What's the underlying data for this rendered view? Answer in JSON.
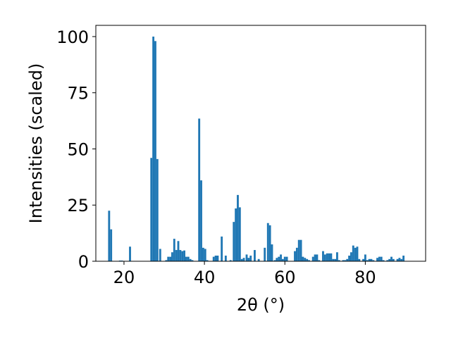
{
  "chart_data": {
    "type": "bar",
    "title": "",
    "xlabel": "2θ (°)",
    "ylabel": "Intensities (scaled)",
    "xlim": [
      13,
      95
    ],
    "ylim": [
      0,
      105
    ],
    "xticks": [
      20,
      40,
      60,
      80
    ],
    "yticks": [
      0,
      25,
      50,
      75,
      100
    ],
    "bar_width": 0.5,
    "bar_color": "#1f77b4",
    "grid": false,
    "bars": [
      {
        "x": 16.3,
        "y": 22.5
      },
      {
        "x": 16.8,
        "y": 14.2
      },
      {
        "x": 19.0,
        "y": 0.3
      },
      {
        "x": 19.5,
        "y": 0.3
      },
      {
        "x": 21.5,
        "y": 6.5
      },
      {
        "x": 26.8,
        "y": 46.0
      },
      {
        "x": 27.3,
        "y": 100.0
      },
      {
        "x": 27.8,
        "y": 98.0
      },
      {
        "x": 28.3,
        "y": 45.5
      },
      {
        "x": 29.0,
        "y": 5.5
      },
      {
        "x": 30.5,
        "y": 0.5
      },
      {
        "x": 31.0,
        "y": 2.0
      },
      {
        "x": 31.5,
        "y": 2.0
      },
      {
        "x": 32.0,
        "y": 4.0
      },
      {
        "x": 32.5,
        "y": 10.0
      },
      {
        "x": 33.0,
        "y": 5.0
      },
      {
        "x": 33.5,
        "y": 9.0
      },
      {
        "x": 34.0,
        "y": 5.0
      },
      {
        "x": 34.5,
        "y": 4.5
      },
      {
        "x": 35.0,
        "y": 4.8
      },
      {
        "x": 35.5,
        "y": 2.0
      },
      {
        "x": 36.0,
        "y": 2.0
      },
      {
        "x": 36.5,
        "y": 1.0
      },
      {
        "x": 37.0,
        "y": 0.5
      },
      {
        "x": 38.7,
        "y": 63.5
      },
      {
        "x": 39.2,
        "y": 36.0
      },
      {
        "x": 39.7,
        "y": 6.0
      },
      {
        "x": 40.2,
        "y": 5.5
      },
      {
        "x": 40.7,
        "y": 0.5
      },
      {
        "x": 42.3,
        "y": 2.0
      },
      {
        "x": 42.8,
        "y": 2.5
      },
      {
        "x": 43.3,
        "y": 2.5
      },
      {
        "x": 44.3,
        "y": 11.0
      },
      {
        "x": 45.3,
        "y": 2.5
      },
      {
        "x": 46.5,
        "y": 0.5
      },
      {
        "x": 47.3,
        "y": 17.5
      },
      {
        "x": 47.8,
        "y": 23.5
      },
      {
        "x": 48.3,
        "y": 29.5
      },
      {
        "x": 48.8,
        "y": 24.0
      },
      {
        "x": 49.3,
        "y": 1.0
      },
      {
        "x": 49.8,
        "y": 1.5
      },
      {
        "x": 50.5,
        "y": 3.0
      },
      {
        "x": 51.0,
        "y": 1.5
      },
      {
        "x": 51.5,
        "y": 2.5
      },
      {
        "x": 52.5,
        "y": 5.0
      },
      {
        "x": 53.5,
        "y": 1.0
      },
      {
        "x": 55.0,
        "y": 6.0
      },
      {
        "x": 55.8,
        "y": 17.0
      },
      {
        "x": 56.3,
        "y": 16.0
      },
      {
        "x": 56.8,
        "y": 7.5
      },
      {
        "x": 57.5,
        "y": 0.5
      },
      {
        "x": 58.0,
        "y": 1.5
      },
      {
        "x": 58.5,
        "y": 2.0
      },
      {
        "x": 59.0,
        "y": 3.0
      },
      {
        "x": 59.5,
        "y": 1.0
      },
      {
        "x": 60.0,
        "y": 2.0
      },
      {
        "x": 60.5,
        "y": 2.0
      },
      {
        "x": 62.5,
        "y": 4.5
      },
      {
        "x": 63.0,
        "y": 6.0
      },
      {
        "x": 63.5,
        "y": 9.5
      },
      {
        "x": 64.0,
        "y": 9.5
      },
      {
        "x": 64.5,
        "y": 2.0
      },
      {
        "x": 65.0,
        "y": 1.5
      },
      {
        "x": 65.5,
        "y": 1.0
      },
      {
        "x": 66.0,
        "y": 0.5
      },
      {
        "x": 67.0,
        "y": 2.0
      },
      {
        "x": 67.5,
        "y": 3.0
      },
      {
        "x": 68.0,
        "y": 3.0
      },
      {
        "x": 68.5,
        "y": 0.5
      },
      {
        "x": 69.5,
        "y": 4.5
      },
      {
        "x": 70.0,
        "y": 3.0
      },
      {
        "x": 70.5,
        "y": 3.5
      },
      {
        "x": 71.0,
        "y": 3.5
      },
      {
        "x": 71.5,
        "y": 3.5
      },
      {
        "x": 72.0,
        "y": 1.0
      },
      {
        "x": 72.5,
        "y": 1.0
      },
      {
        "x": 73.0,
        "y": 4.0
      },
      {
        "x": 73.5,
        "y": 0.5
      },
      {
        "x": 74.5,
        "y": 0.5
      },
      {
        "x": 75.0,
        "y": 0.5
      },
      {
        "x": 75.5,
        "y": 1.0
      },
      {
        "x": 76.0,
        "y": 2.5
      },
      {
        "x": 76.5,
        "y": 4.0
      },
      {
        "x": 77.0,
        "y": 7.0
      },
      {
        "x": 77.5,
        "y": 6.0
      },
      {
        "x": 78.0,
        "y": 6.5
      },
      {
        "x": 78.5,
        "y": 1.0
      },
      {
        "x": 79.5,
        "y": 1.0
      },
      {
        "x": 80.0,
        "y": 3.0
      },
      {
        "x": 80.5,
        "y": 0.5
      },
      {
        "x": 81.0,
        "y": 1.0
      },
      {
        "x": 81.5,
        "y": 1.0
      },
      {
        "x": 82.0,
        "y": 0.5
      },
      {
        "x": 83.0,
        "y": 1.5
      },
      {
        "x": 83.5,
        "y": 2.0
      },
      {
        "x": 84.0,
        "y": 2.0
      },
      {
        "x": 84.5,
        "y": 0.5
      },
      {
        "x": 85.5,
        "y": 0.5
      },
      {
        "x": 86.0,
        "y": 1.0
      },
      {
        "x": 86.5,
        "y": 2.0
      },
      {
        "x": 87.0,
        "y": 1.0
      },
      {
        "x": 88.0,
        "y": 1.0
      },
      {
        "x": 88.5,
        "y": 1.5
      },
      {
        "x": 89.0,
        "y": 1.0
      },
      {
        "x": 89.5,
        "y": 2.5
      }
    ]
  }
}
